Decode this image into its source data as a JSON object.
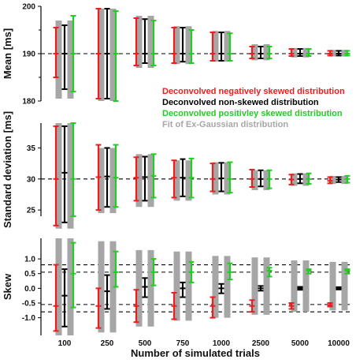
{
  "figure": {
    "xlabel": "Number of simulated trials",
    "categories": [
      "100",
      "250",
      "500",
      "750",
      "1000",
      "2500",
      "5000",
      "10000"
    ],
    "legend": [
      {
        "label": "Deconvolved negatively skewed distribution",
        "color": "#ee1c1c"
      },
      {
        "label": "Deconvolved non-skewed distribution",
        "color": "#000000"
      },
      {
        "label": "Deconvolved positivley skewed distribution",
        "color": "#22cc22"
      },
      {
        "label": "Fit of Ex-Gaussian distribution",
        "color": "#a6a6a6"
      }
    ]
  },
  "chart_data": [
    {
      "type": "errorbar",
      "ylabel": "Mean [ms]",
      "ylim": [
        180,
        200
      ],
      "yticks": [
        180,
        190,
        200
      ],
      "yticks_minor": [
        185,
        195
      ],
      "reference_lines": [
        190
      ],
      "categories": [
        "100",
        "250",
        "500",
        "750",
        "1000",
        "2500",
        "5000",
        "10000"
      ],
      "series": [
        {
          "name": "Deconvolved negatively skewed distribution",
          "color": "#ee1c1c",
          "center": [
            190,
            190,
            190,
            190,
            190,
            190,
            190,
            190
          ],
          "low": [
            185,
            180.5,
            187.5,
            188,
            188.5,
            189,
            189.5,
            189.6
          ],
          "high": [
            195.5,
            199.5,
            197.5,
            195.5,
            194.5,
            191.5,
            191,
            190.6
          ]
        },
        {
          "name": "Deconvolved non-skewed distribution",
          "color": "#000000",
          "center": [
            190,
            190,
            190,
            190,
            190,
            190,
            190,
            190
          ],
          "low": [
            182.5,
            180.5,
            188,
            188.3,
            188.5,
            189,
            189.5,
            189.6
          ],
          "high": [
            196,
            199.5,
            197.3,
            195.5,
            194.5,
            191.5,
            191,
            190.6
          ]
        },
        {
          "name": "Deconvolved positivley skewed distribution",
          "color": "#22cc22",
          "center": [
            190,
            190,
            190,
            190,
            190,
            190,
            190,
            190
          ],
          "low": [
            182,
            180,
            187.5,
            188,
            188.5,
            189,
            189.5,
            189.6
          ],
          "high": [
            198,
            199,
            197,
            195,
            194.3,
            191.5,
            191,
            190.6
          ]
        },
        {
          "name": "Fit of Ex-Gaussian distribution",
          "color": "#a6a6a6",
          "low": [
            180.5,
            180,
            187,
            187.8,
            188.3,
            188.6,
            189.2,
            189.4
          ],
          "high": [
            197,
            199.5,
            198,
            195.8,
            194.8,
            192,
            191.2,
            190.8
          ]
        }
      ]
    },
    {
      "type": "errorbar",
      "ylabel": "Standard deviation [ms]",
      "ylim": [
        24,
        39
      ],
      "yticks": [
        25,
        30,
        35
      ],
      "reference_lines": [
        30
      ],
      "categories": [
        "100",
        "250",
        "500",
        "750",
        "1000",
        "2500",
        "5000",
        "10000"
      ],
      "series": [
        {
          "name": "Deconvolved negatively skewed distribution",
          "color": "#ee1c1c",
          "center": [
            30,
            30.3,
            30.2,
            30.2,
            30,
            30,
            29.9,
            29.7
          ],
          "low": [
            22.5,
            25,
            26.5,
            27,
            28,
            28.7,
            29.1,
            29.3
          ],
          "high": [
            38.5,
            35.5,
            33.5,
            33,
            32.5,
            31.5,
            30.7,
            30.3
          ]
        },
        {
          "name": "Deconvolved non-skewed distribution",
          "color": "#000000",
          "center": [
            31,
            30.4,
            30.3,
            30.2,
            30.1,
            30,
            30,
            29.9
          ],
          "low": [
            23,
            25.5,
            26.5,
            27.2,
            28,
            28.8,
            29.3,
            29.5
          ],
          "high": [
            38.5,
            35,
            33.6,
            33.2,
            32.6,
            31.4,
            30.8,
            30.3
          ]
        },
        {
          "name": "Deconvolved positivley skewed distribution",
          "color": "#22cc22",
          "center": [
            30,
            30.2,
            30.5,
            30.2,
            30,
            30,
            30,
            30
          ],
          "low": [
            24,
            25.5,
            27,
            27,
            27.8,
            28.5,
            29.2,
            29.4
          ],
          "high": [
            39,
            35.5,
            34,
            33.3,
            32.7,
            31.4,
            30.9,
            30.5
          ]
        },
        {
          "name": "Fit of Ex-Gaussian distribution",
          "color": "#a6a6a6",
          "low": [
            22,
            24.5,
            25.5,
            26.5,
            27.5,
            28.2,
            28.9,
            29.2
          ],
          "high": [
            39,
            35,
            34,
            33,
            32.7,
            31.4,
            30.9,
            30.5
          ]
        }
      ]
    },
    {
      "type": "errorbar",
      "ylabel": "Skew",
      "ylim": [
        -1.6,
        1.7
      ],
      "yticks": [
        -1.0,
        -0.5,
        0.0,
        0.5,
        1.0
      ],
      "yticklabels": [
        "-1.0",
        "-0.5",
        "0.0",
        "0.5",
        "1.0"
      ],
      "reference_lines": [
        -0.8,
        -0.55,
        0.55,
        0.8
      ],
      "categories": [
        "100",
        "250",
        "500",
        "750",
        "1000",
        "2500",
        "5000",
        "10000"
      ],
      "series": [
        {
          "name": "Deconvolved negatively skewed distribution",
          "color": "#ee1c1c",
          "center": [
            -0.6,
            -0.6,
            -0.6,
            -0.6,
            -0.6,
            -0.6,
            -0.6,
            -0.57
          ],
          "low": [
            -1.45,
            -1.35,
            -1.15,
            -1.05,
            -1.0,
            -0.8,
            -0.7,
            -0.62
          ],
          "high": [
            0.8,
            -0.0,
            -0.05,
            -0.15,
            -0.3,
            -0.4,
            -0.5,
            -0.5
          ]
        },
        {
          "name": "Deconvolved non-skewed distribution",
          "color": "#000000",
          "center": [
            -0.25,
            -0.1,
            0.05,
            0.0,
            0.0,
            0.0,
            0.0,
            0.0
          ],
          "low": [
            -1.3,
            -0.7,
            -0.3,
            -0.3,
            -0.17,
            -0.08,
            -0.05,
            -0.04
          ],
          "high": [
            0.65,
            0.45,
            0.35,
            0.2,
            0.15,
            0.08,
            0.05,
            0.04
          ]
        },
        {
          "name": "Deconvolved positivley skewed distribution",
          "color": "#22cc22",
          "center": [
            0.5,
            0.55,
            0.55,
            0.55,
            0.55,
            0.6,
            0.6,
            0.6
          ],
          "low": [
            -0.65,
            0.05,
            0.1,
            0.2,
            0.3,
            0.4,
            0.5,
            0.5
          ],
          "high": [
            1.55,
            1.25,
            1.0,
            0.9,
            0.85,
            0.7,
            0.65,
            0.65
          ]
        },
        {
          "name": "Fit of Ex-Gaussian distribution",
          "color": "#a6a6a6",
          "low": [
            -1.6,
            -1.5,
            -1.3,
            -1.1,
            -1.0,
            -0.9,
            -0.8,
            -0.75
          ],
          "high": [
            1.7,
            1.6,
            1.3,
            1.25,
            1.1,
            1.05,
            0.95,
            0.9
          ]
        }
      ]
    }
  ]
}
